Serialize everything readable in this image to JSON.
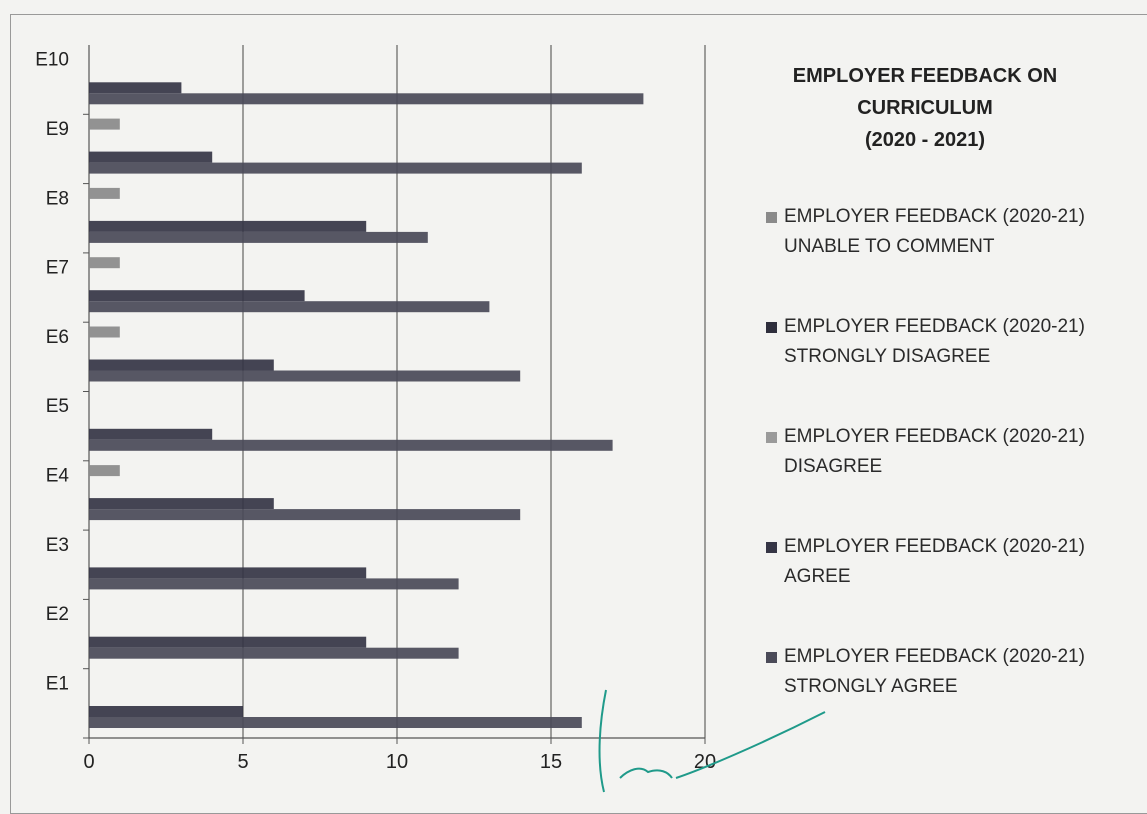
{
  "chart_data": {
    "type": "bar",
    "orientation": "horizontal",
    "title": "EMPLOYER FEEDBACK ON CURRICULUM (2020 - 2021)",
    "title_lines": [
      "EMPLOYER FEEDBACK ON",
      "CURRICULUM",
      "(2020 - 2021)"
    ],
    "categories": [
      "E1",
      "E2",
      "E3",
      "E4",
      "E5",
      "E6",
      "E7",
      "E8",
      "E9",
      "E10"
    ],
    "xlim": [
      0,
      20
    ],
    "x_ticks": [
      "0",
      "5",
      "10",
      "15",
      "20"
    ],
    "grid": true,
    "legend_position": "right",
    "series": [
      {
        "name": "EMPLOYER FEEDBACK (2020-21) UNABLE TO COMMENT",
        "legend_line1": "EMPLOYER FEEDBACK (2020-21)",
        "legend_line2": "UNABLE TO COMMENT",
        "color": "#8a8a8a",
        "values": [
          0,
          0,
          0,
          1,
          0,
          1,
          1,
          1,
          1,
          0
        ]
      },
      {
        "name": "EMPLOYER FEEDBACK (2020-21) STRONGLY DISAGREE",
        "legend_line1": "EMPLOYER FEEDBACK (2020-21)",
        "legend_line2": "STRONGLY DISAGREE",
        "color": "#2e2e3c",
        "values": [
          0,
          0,
          0,
          0,
          0,
          0,
          0,
          0,
          0,
          0
        ]
      },
      {
        "name": "EMPLOYER FEEDBACK (2020-21) DISAGREE",
        "legend_line1": "EMPLOYER FEEDBACK (2020-21)",
        "legend_line2": "DISAGREE",
        "color": "#9a9a9a",
        "values": [
          0,
          0,
          0,
          0,
          0,
          0,
          0,
          0,
          0,
          0
        ]
      },
      {
        "name": "EMPLOYER FEEDBACK (2020-21) AGREE",
        "legend_line1": "EMPLOYER FEEDBACK (2020-21)",
        "legend_line2": "AGREE",
        "color": "#353545",
        "values": [
          5,
          9,
          9,
          6,
          4,
          6,
          7,
          9,
          4,
          3
        ]
      },
      {
        "name": "EMPLOYER FEEDBACK (2020-21) STRONGLY AGREE",
        "legend_line1": "EMPLOYER FEEDBACK (2020-21)",
        "legend_line2": "STRONGLY AGREE",
        "color": "#4a4a58",
        "values": [
          16,
          12,
          12,
          14,
          17,
          14,
          13,
          11,
          16,
          18
        ]
      }
    ]
  }
}
